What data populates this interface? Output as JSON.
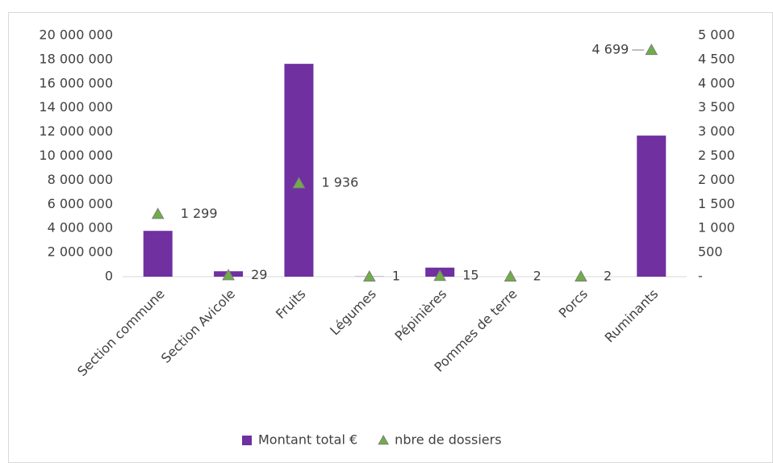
{
  "chart_data": {
    "type": "bar",
    "categories": [
      "Section commune",
      "Section Avicole",
      "Fruits",
      "Légumes",
      "Pépinières",
      "Pommes de terre",
      "Porcs",
      "Ruminants"
    ],
    "series": [
      {
        "name": "Montant total €",
        "type": "bar",
        "color": "#7030a0",
        "values": [
          3800000,
          450000,
          17650000,
          20000,
          750000,
          0,
          0,
          11700000
        ]
      },
      {
        "name": "nbre de dossiers",
        "type": "scatter",
        "axis": "y2",
        "color": "#70ad47",
        "values": [
          1299,
          29,
          1936,
          1,
          15,
          2,
          2,
          4699
        ],
        "value_labels": [
          "1 299",
          "29",
          "1 936",
          "1",
          "15",
          "2",
          "2",
          "4 699"
        ]
      }
    ],
    "ylim": [
      0,
      20000000
    ],
    "yticks": [
      0,
      {
        "value": 2000000,
        "label": "2 000 000"
      },
      {
        "value": 4000000,
        "label": "4 000 000"
      },
      {
        "value": 6000000,
        "label": "6 000 000"
      },
      {
        "value": 8000000,
        "label": "8 000 000"
      },
      {
        "value": 10000000,
        "label": "10 000 000"
      },
      {
        "value": 12000000,
        "label": "12 000 000"
      },
      {
        "value": 14000000,
        "label": "14 000 000"
      },
      {
        "value": 16000000,
        "label": "16 000 000"
      },
      {
        "value": 18000000,
        "label": "18 000 000"
      },
      {
        "value": 20000000,
        "label": "20 000 000"
      }
    ],
    "y2lim": [
      0,
      5000
    ],
    "y2ticks": [
      {
        "value": 0,
        "label": "-"
      },
      500,
      {
        "value": 1000,
        "label": "1 000"
      },
      {
        "value": 1500,
        "label": "1 500"
      },
      {
        "value": 2000,
        "label": "2 000"
      },
      {
        "value": 2500,
        "label": "2 500"
      },
      {
        "value": 3000,
        "label": "3 000"
      },
      {
        "value": 3500,
        "label": "3 500"
      },
      {
        "value": 4000,
        "label": "4 000"
      },
      {
        "value": 4500,
        "label": "4 500"
      },
      {
        "value": 5000,
        "label": "5 000"
      }
    ],
    "grid": false,
    "legend": "bottom"
  }
}
